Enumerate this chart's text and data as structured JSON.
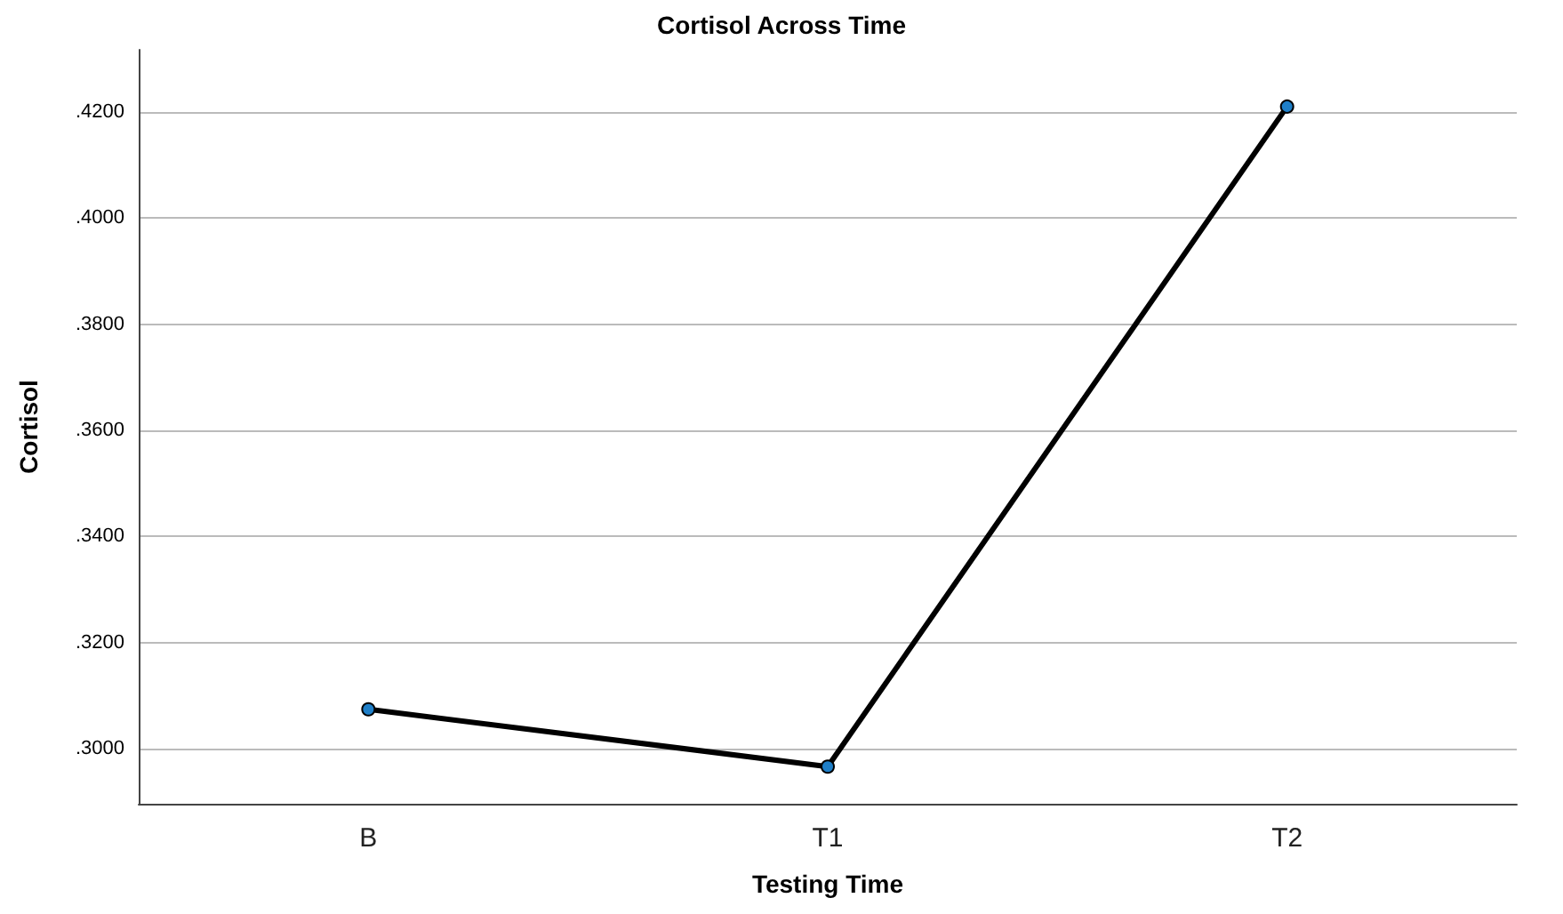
{
  "chart_data": {
    "type": "line",
    "title": "Cortisol Across Time",
    "xlabel": "Testing Time",
    "ylabel": "Cortisol",
    "categories": [
      "B",
      "T1",
      "T2"
    ],
    "series": [
      {
        "color": "#000000",
        "values": [
          0.3074,
          0.2966,
          0.421
        ]
      }
    ],
    "ylim": [
      0.2896,
      0.4317
    ],
    "yticks": [
      {
        "value": 0.3,
        "label": ".3000"
      },
      {
        "value": 0.32,
        "label": ".3200"
      },
      {
        "value": 0.34,
        "label": ".3400"
      },
      {
        "value": 0.36,
        "label": ".3600"
      },
      {
        "value": 0.38,
        "label": ".3800"
      },
      {
        "value": 0.4,
        "label": ".4000"
      },
      {
        "value": 0.42,
        "label": ".4200"
      }
    ],
    "grid": "y",
    "marker": "circle",
    "line_style": "solid"
  }
}
